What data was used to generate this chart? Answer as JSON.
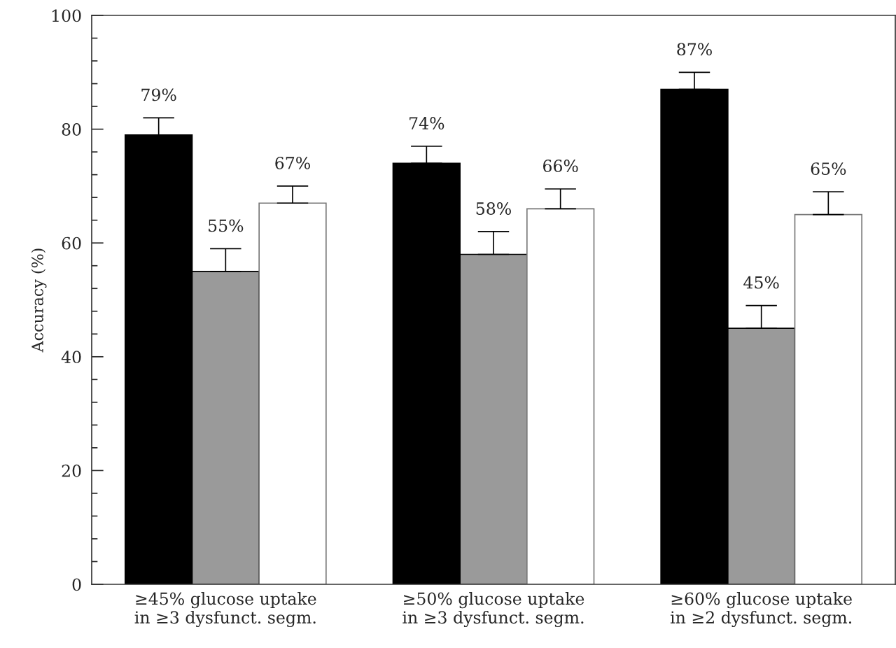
{
  "chart_data": {
    "type": "bar",
    "ylabel": "Accuracy (%)",
    "categories": [
      "≥45% glucose uptake\nin ≥3 dysfunct. segm.",
      "≥50% glucose uptake\nin ≥3 dysfunct. segm.",
      "≥60% glucose uptake\nin ≥2 dysfunct. segm."
    ],
    "series": [
      {
        "color": "#000000",
        "values": [
          79,
          74,
          87
        ],
        "errors": [
          [
            79,
            82
          ],
          [
            74,
            77
          ],
          [
            87,
            90
          ]
        ],
        "value_labels": [
          "79%",
          "74%",
          "87%"
        ]
      },
      {
        "color": "#9a9a9a",
        "values": [
          55,
          58,
          45
        ],
        "errors": [
          [
            55,
            59
          ],
          [
            58,
            62
          ],
          [
            45,
            49
          ]
        ],
        "value_labels": [
          "55%",
          "58%",
          "45%"
        ]
      },
      {
        "color": "#ffffff",
        "values": [
          67,
          66,
          65
        ],
        "errors": [
          [
            67,
            70
          ],
          [
            66,
            69.5
          ],
          [
            65,
            69
          ]
        ],
        "value_labels": [
          "67%",
          "66%",
          "65%"
        ]
      }
    ],
    "ylim": [
      0,
      100
    ],
    "yticks": [
      0,
      20,
      40,
      60,
      80,
      100
    ],
    "grid": false,
    "legend": false
  }
}
